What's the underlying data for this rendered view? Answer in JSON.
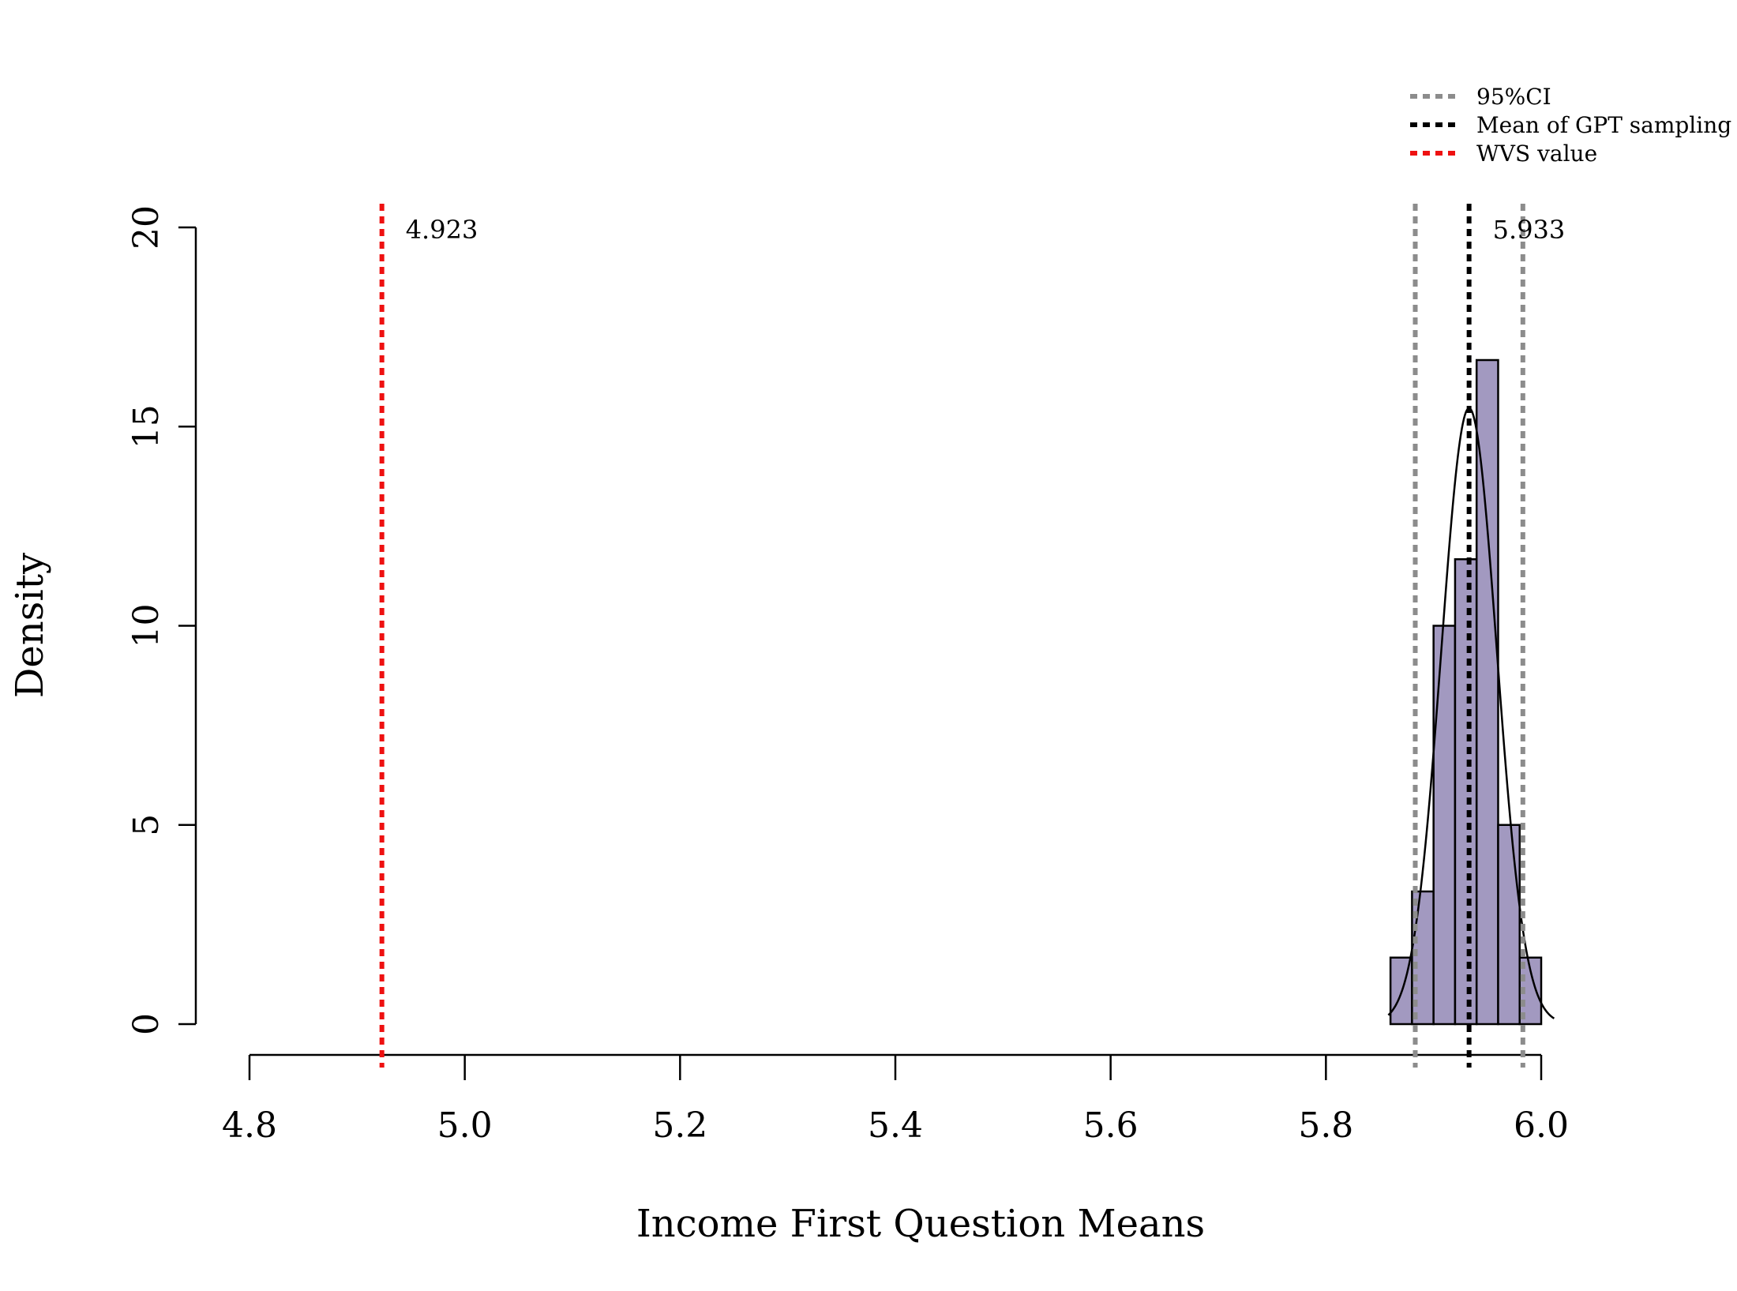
{
  "chart_data": {
    "type": "bar",
    "subtype": "histogram",
    "title": "",
    "xlabel": "Income First Question Means",
    "ylabel": "Density",
    "xlim": [
      4.8,
      6.0
    ],
    "ylim": [
      0,
      20
    ],
    "x_ticks": [
      "4.8",
      "5.0",
      "5.2",
      "5.4",
      "5.6",
      "5.8",
      "6.0"
    ],
    "y_ticks": [
      "0",
      "5",
      "10",
      "15",
      "20"
    ],
    "bar_color": "#a299c0",
    "bins": [
      {
        "start": 5.86,
        "end": 5.88,
        "density": 1.67
      },
      {
        "start": 5.88,
        "end": 5.9,
        "density": 3.33
      },
      {
        "start": 5.9,
        "end": 5.92,
        "density": 10.0
      },
      {
        "start": 5.92,
        "end": 5.94,
        "density": 11.67
      },
      {
        "start": 5.94,
        "end": 5.96,
        "density": 16.67
      },
      {
        "start": 5.96,
        "end": 5.98,
        "density": 5.0
      },
      {
        "start": 5.98,
        "end": 6.0,
        "density": 1.67
      }
    ],
    "normal_curve": {
      "mean": 5.933,
      "sd": 0.0258
    },
    "reference_lines": [
      {
        "name": "95%CI",
        "x": 5.883,
        "color": "#8c8c8c"
      },
      {
        "name": "95%CI",
        "x": 5.983,
        "color": "#8c8c8c"
      },
      {
        "name": "Mean of GPT sampling",
        "x": 5.933,
        "color": "#000000"
      },
      {
        "name": "WVS value",
        "x": 4.923,
        "color": "#ee1111"
      }
    ],
    "annotations": [
      {
        "text": "4.923",
        "x": 4.923
      },
      {
        "text": "5.933",
        "x": 5.933
      }
    ],
    "legend": {
      "position": "top-right",
      "entries": [
        {
          "label": "95%CI",
          "color": "#8c8c8c"
        },
        {
          "label": "Mean of GPT sampling",
          "color": "#000000"
        },
        {
          "label": "WVS value",
          "color": "#ee1111"
        }
      ]
    },
    "grid": false
  }
}
